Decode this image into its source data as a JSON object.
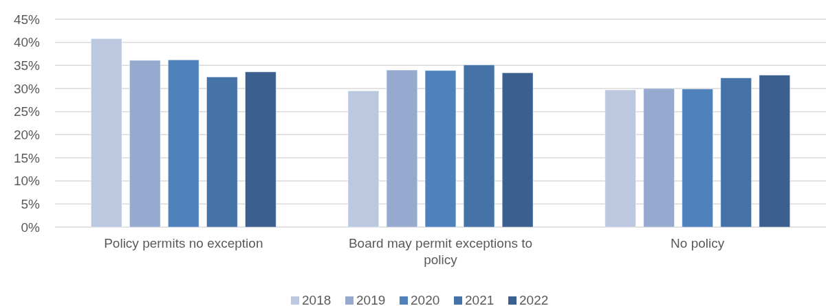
{
  "chart_data": {
    "type": "bar",
    "categories": [
      "Policy permits no exception",
      "Board may permit exceptions to policy",
      "No policy"
    ],
    "series": [
      {
        "name": "2018",
        "color": "#bcc8e0",
        "values": [
          40.8,
          29.5,
          29.7
        ]
      },
      {
        "name": "2019",
        "color": "#96aad0",
        "values": [
          36.1,
          34.0,
          30.0
        ]
      },
      {
        "name": "2020",
        "color": "#4f81bd",
        "values": [
          36.2,
          33.9,
          29.9
        ]
      },
      {
        "name": "2021",
        "color": "#4573a7",
        "values": [
          32.5,
          35.1,
          32.3
        ]
      },
      {
        "name": "2022",
        "color": "#3b5f8e",
        "values": [
          33.6,
          33.4,
          32.9
        ]
      }
    ],
    "ylim": [
      0,
      45
    ],
    "yticks": [
      {
        "value": 0,
        "label": "0%"
      },
      {
        "value": 5,
        "label": "5%"
      },
      {
        "value": 10,
        "label": "10%"
      },
      {
        "value": 15,
        "label": "15%"
      },
      {
        "value": 20,
        "label": "20%"
      },
      {
        "value": 25,
        "label": "25%"
      },
      {
        "value": 30,
        "label": "30%"
      },
      {
        "value": 35,
        "label": "35%"
      },
      {
        "value": 40,
        "label": "40%"
      },
      {
        "value": 45,
        "label": "45%"
      }
    ],
    "grid": "y",
    "legend": "bottom"
  }
}
